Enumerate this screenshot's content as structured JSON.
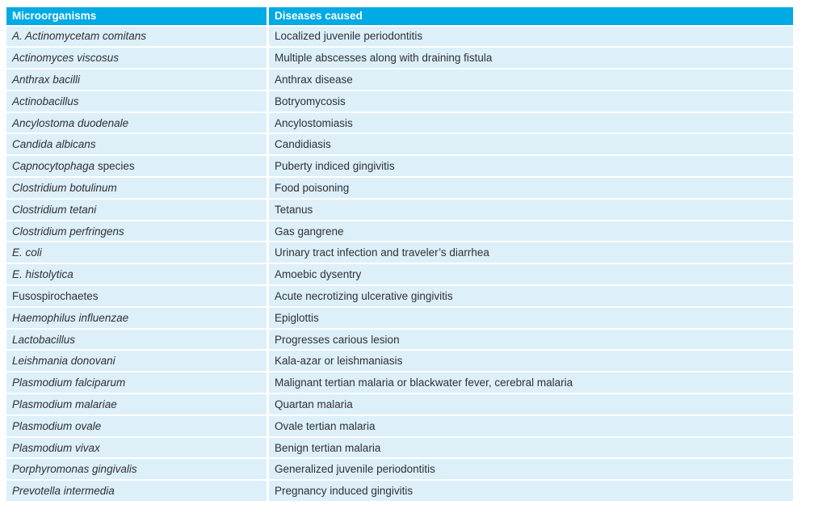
{
  "colors": {
    "header_bg": "#00aae4",
    "header_text": "#ffffff",
    "row_bg": "#ddeff9",
    "body_text": "#2e3134",
    "separator": "#ffffff",
    "page_bg": "#ffffff"
  },
  "table": {
    "columns": [
      "Microorganisms",
      "Diseases caused"
    ],
    "rows": [
      {
        "organism": "A. Actinomycetam comitans",
        "italic": true,
        "suffix": "",
        "disease": "Localized juvenile periodontitis"
      },
      {
        "organism": "Actinomyces viscosus",
        "italic": true,
        "suffix": "",
        "disease": "Multiple abscesses along with draining fistula"
      },
      {
        "organism": "Anthrax bacilli",
        "italic": true,
        "suffix": "",
        "disease": "Anthrax disease"
      },
      {
        "organism": "Actinobacillus",
        "italic": true,
        "suffix": "",
        "disease": "Botryomycosis"
      },
      {
        "organism": "Ancylostoma duodenale",
        "italic": true,
        "suffix": "",
        "disease": "Ancylostomiasis"
      },
      {
        "organism": "Candida albicans",
        "italic": true,
        "suffix": "",
        "disease": "Candidiasis"
      },
      {
        "organism": "Capnocytophaga",
        "italic": true,
        "suffix": " species",
        "disease": "Puberty indiced gingivitis"
      },
      {
        "organism": "Clostridium botulinum",
        "italic": true,
        "suffix": "",
        "disease": "Food poisoning"
      },
      {
        "organism": "Clostridium tetani",
        "italic": true,
        "suffix": "",
        "disease": "Tetanus"
      },
      {
        "organism": "Clostridium perfringens",
        "italic": true,
        "suffix": "",
        "disease": "Gas gangrene"
      },
      {
        "organism": "E. coli",
        "italic": true,
        "suffix": "",
        "disease": "Urinary tract infection and traveler’s diarrhea"
      },
      {
        "organism": "E. histolytica",
        "italic": true,
        "suffix": "",
        "disease": "Amoebic dysentry"
      },
      {
        "organism": "Fusospirochaetes",
        "italic": false,
        "suffix": "",
        "disease": "Acute necrotizing ulcerative gingivitis"
      },
      {
        "organism": "Haemophilus influenzae",
        "italic": true,
        "suffix": "",
        "disease": "Epiglottis"
      },
      {
        "organism": "Lactobacillus",
        "italic": true,
        "suffix": "",
        "disease": "Progresses carious lesion"
      },
      {
        "organism": "Leishmania donovani",
        "italic": true,
        "suffix": "",
        "disease": "Kala-azar or leishmaniasis"
      },
      {
        "organism": "Plasmodium falciparum",
        "italic": true,
        "suffix": "",
        "disease": "Malignant tertian malaria or blackwater fever, cerebral malaria"
      },
      {
        "organism": "Plasmodium malariae",
        "italic": true,
        "suffix": "",
        "disease": "Quartan malaria"
      },
      {
        "organism": "Plasmodium ovale",
        "italic": true,
        "suffix": "",
        "disease": "Ovale tertian malaria"
      },
      {
        "organism": "Plasmodium vivax",
        "italic": true,
        "suffix": "",
        "disease": "Benign tertian malaria"
      },
      {
        "organism": "Porphyromonas gingivalis",
        "italic": true,
        "suffix": "",
        "disease": "Generalized juvenile periodontitis"
      },
      {
        "organism": "Prevotella intermedia",
        "italic": true,
        "suffix": "",
        "disease": "Pregnancy induced gingivitis"
      }
    ]
  }
}
